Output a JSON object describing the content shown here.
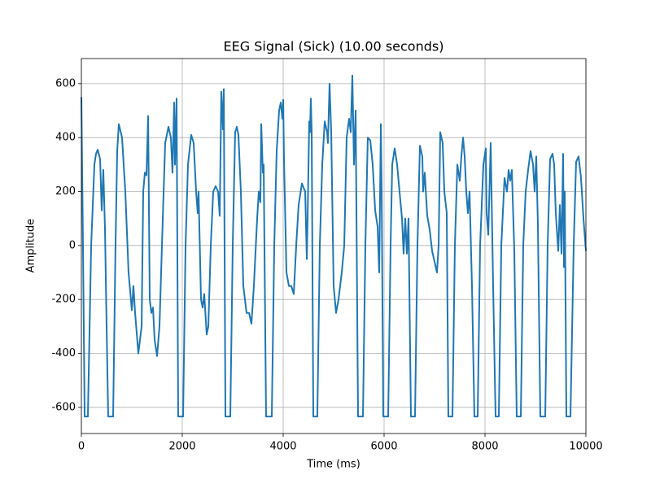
{
  "chart_data": {
    "type": "line",
    "title": "EEG Signal (Sick) (10.00 seconds)",
    "x_label": "Time (ms)",
    "y_label": "Amplitude",
    "color": "#1f77b4",
    "grid": true,
    "xlim": [
      0,
      10000
    ],
    "xticks": [
      0,
      2000,
      4000,
      6000,
      8000,
      10000
    ],
    "ylim": [
      -697,
      693
    ],
    "yticks": [
      -600,
      -400,
      -200,
      0,
      200,
      400,
      600
    ],
    "x": [
      0,
      32,
      65,
      129,
      194,
      258,
      290,
      323,
      371,
      403,
      435,
      468,
      500,
      532,
      629,
      677,
      710,
      742,
      806,
      871,
      935,
      1000,
      1032,
      1065,
      1129,
      1194,
      1226,
      1258,
      1290,
      1323,
      1355,
      1387,
      1419,
      1452,
      1500,
      1548,
      1597,
      1661,
      1726,
      1774,
      1806,
      1839,
      1855,
      1887,
      1919,
      2016,
      2065,
      2113,
      2177,
      2226,
      2274,
      2306,
      2323,
      2371,
      2403,
      2435,
      2484,
      2516,
      2565,
      2613,
      2661,
      2710,
      2742,
      2774,
      2806,
      2823,
      2855,
      2952,
      3000,
      3048,
      3081,
      3113,
      3161,
      3210,
      3274,
      3323,
      3371,
      3419,
      3484,
      3516,
      3548,
      3565,
      3597,
      3613,
      3661,
      3774,
      3823,
      3871,
      3919,
      3952,
      3984,
      4000,
      4016,
      4065,
      4113,
      4161,
      4210,
      4258,
      4306,
      4371,
      4436,
      4468,
      4484,
      4516,
      4532,
      4548,
      4565,
      4597,
      4677,
      4726,
      4774,
      4823,
      4871,
      4887,
      4919,
      4952,
      5000,
      5048,
      5097,
      5161,
      5210,
      5258,
      5306,
      5339,
      5371,
      5403,
      5436,
      5484,
      5581,
      5629,
      5677,
      5726,
      5774,
      5823,
      5871,
      5903,
      5936,
      5952,
      5984,
      6081,
      6129,
      6161,
      6210,
      6258,
      6306,
      6355,
      6387,
      6419,
      6452,
      6484,
      6532,
      6613,
      6661,
      6710,
      6758,
      6774,
      6806,
      6855,
      6903,
      6952,
      7000,
      7048,
      7081,
      7113,
      7161,
      7194,
      7242,
      7274,
      7355,
      7403,
      7452,
      7500,
      7532,
      7565,
      7597,
      7629,
      7661,
      7694,
      7742,
      7790,
      7855,
      7903,
      7968,
      8016,
      8032,
      8065,
      8113,
      8161,
      8210,
      8274,
      8323,
      8387,
      8436,
      8468,
      8500,
      8532,
      8581,
      8629,
      8710,
      8758,
      8806,
      8855,
      8903,
      8952,
      8984,
      9016,
      9048,
      9097,
      9194,
      9242,
      9290,
      9339,
      9371,
      9403,
      9452,
      9484,
      9516,
      9548,
      9565,
      9581,
      9613,
      9694,
      9758,
      9806,
      9855,
      9903,
      9952,
      10000
    ],
    "values": [
      550,
      0,
      -634,
      -634,
      0,
      300,
      340,
      355,
      320,
      130,
      280,
      60,
      -300,
      -634,
      -634,
      0,
      350,
      450,
      400,
      200,
      -100,
      -240,
      -150,
      -250,
      -400,
      -300,
      200,
      270,
      260,
      480,
      -200,
      -250,
      -230,
      -350,
      -410,
      -300,
      0,
      380,
      440,
      400,
      270,
      530,
      300,
      545,
      -634,
      -634,
      0,
      300,
      410,
      380,
      200,
      120,
      200,
      -200,
      -230,
      -180,
      -330,
      -300,
      0,
      200,
      220,
      200,
      110,
      570,
      430,
      580,
      -634,
      -634,
      0,
      420,
      440,
      410,
      200,
      -150,
      -250,
      -250,
      -290,
      -150,
      100,
      200,
      160,
      450,
      270,
      300,
      -634,
      -634,
      0,
      350,
      500,
      530,
      470,
      540,
      320,
      -100,
      -150,
      -150,
      -180,
      0,
      150,
      230,
      200,
      -50,
      100,
      460,
      420,
      545,
      420,
      -634,
      -634,
      0,
      300,
      460,
      420,
      380,
      600,
      420,
      -150,
      -250,
      -200,
      -100,
      0,
      400,
      470,
      420,
      630,
      300,
      500,
      -634,
      -634,
      0,
      400,
      390,
      300,
      130,
      70,
      -100,
      450,
      200,
      -634,
      -634,
      0,
      300,
      360,
      300,
      200,
      100,
      -30,
      100,
      -30,
      100,
      -634,
      -634,
      0,
      370,
      330,
      200,
      270,
      110,
      60,
      -20,
      -60,
      -100,
      0,
      420,
      380,
      200,
      120,
      -634,
      -634,
      0,
      300,
      240,
      330,
      400,
      330,
      200,
      120,
      200,
      -150,
      -634,
      -634,
      0,
      300,
      360,
      120,
      40,
      380,
      -150,
      -634,
      -634,
      0,
      250,
      200,
      280,
      240,
      280,
      -20,
      -634,
      -634,
      0,
      200,
      280,
      350,
      300,
      200,
      330,
      80,
      -634,
      -634,
      0,
      320,
      340,
      300,
      120,
      -20,
      150,
      -30,
      340,
      -80,
      200,
      -634,
      -634,
      0,
      310,
      330,
      250,
      100,
      -20
    ]
  }
}
